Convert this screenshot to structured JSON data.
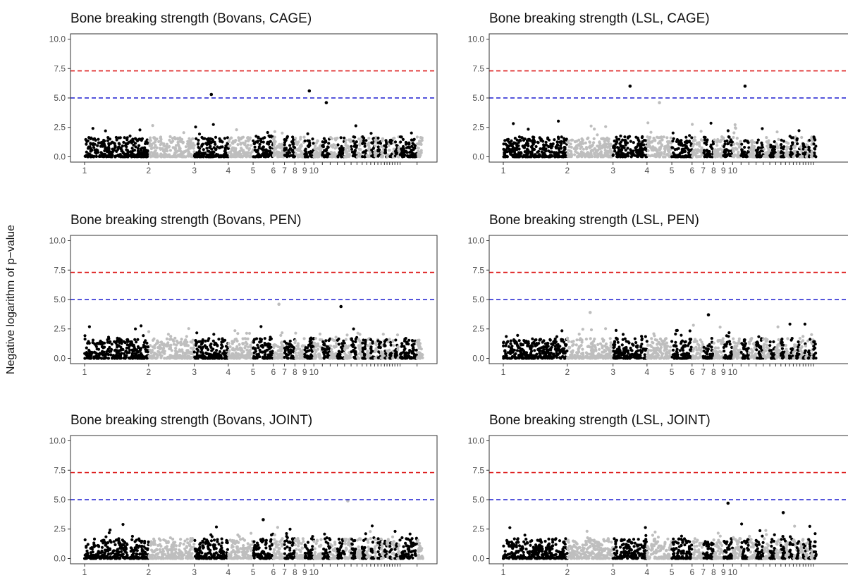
{
  "ylabel": "Negative logarithm of p−value",
  "colors": {
    "odd_chromosome": "#000000",
    "even_chromosome": "#bebebe",
    "genomewide_line": "#dd1c1c",
    "suggestive_line": "#1c1cd0"
  },
  "chart_data": [
    {
      "type": "scatter",
      "title": "Bone breaking strength (Bovans, CAGE)",
      "ylim": [
        0,
        10
      ],
      "yticks": [
        "0.0",
        "2.5",
        "5.0",
        "7.5",
        "10.0"
      ],
      "thresholds": {
        "genomewide": 7.3,
        "suggestive": 5.0
      },
      "chromosome_labels": [
        "1",
        "2",
        "3",
        "4",
        "5",
        "6",
        "7",
        "8",
        "9",
        "10"
      ],
      "notable_peaks": [
        {
          "chr": "3",
          "y": 5.3
        },
        {
          "chr": "9-10",
          "y": 5.6
        },
        {
          "chr": "11",
          "y": 4.6
        }
      ]
    },
    {
      "type": "scatter",
      "title": "Bone breaking strength (LSL, CAGE)",
      "ylim": [
        0,
        10
      ],
      "yticks": [
        "0.0",
        "2.5",
        "5.0",
        "7.5",
        "10.0"
      ],
      "thresholds": {
        "genomewide": 7.3,
        "suggestive": 5.0
      },
      "chromosome_labels": [
        "1",
        "2",
        "3",
        "4",
        "5",
        "6",
        "7",
        "8",
        "9",
        "10"
      ],
      "notable_peaks": [
        {
          "chr": "3",
          "y": 6.0
        },
        {
          "chr": "11",
          "y": 6.0
        },
        {
          "chr": "4",
          "y": 4.6
        }
      ]
    },
    {
      "type": "scatter",
      "title": "Bone breaking strength (Bovans, PEN)",
      "ylim": [
        0,
        10
      ],
      "yticks": [
        "0.0",
        "2.5",
        "5.0",
        "7.5",
        "10.0"
      ],
      "thresholds": {
        "genomewide": 7.3,
        "suggestive": 5.0
      },
      "chromosome_labels": [
        "1",
        "2",
        "3",
        "4",
        "5",
        "6",
        "7",
        "8",
        "9",
        "10"
      ],
      "notable_peaks": [
        {
          "chr": "6",
          "y": 4.6
        },
        {
          "chr": "13",
          "y": 4.4
        }
      ]
    },
    {
      "type": "scatter",
      "title": "Bone breaking strength (LSL, PEN)",
      "ylim": [
        0,
        10
      ],
      "yticks": [
        "0.0",
        "2.5",
        "5.0",
        "7.5",
        "10.0"
      ],
      "thresholds": {
        "genomewide": 7.3,
        "suggestive": 5.0
      },
      "chromosome_labels": [
        "1",
        "2",
        "3",
        "4",
        "5",
        "6",
        "7",
        "8",
        "9",
        "10"
      ],
      "notable_peaks": [
        {
          "chr": "2",
          "y": 3.9
        },
        {
          "chr": "7",
          "y": 3.7
        }
      ]
    },
    {
      "type": "scatter",
      "title": "Bone breaking strength (Bovans, JOINT)",
      "ylim": [
        0,
        10
      ],
      "yticks": [
        "0.0",
        "2.5",
        "5.0",
        "7.5",
        "10.0"
      ],
      "thresholds": {
        "genomewide": 7.3,
        "suggestive": 5.0
      },
      "chromosome_labels": [
        "1",
        "2",
        "3",
        "4",
        "5",
        "6",
        "7",
        "8",
        "9",
        "10"
      ],
      "notable_peaks": [
        {
          "chr": "14",
          "y": 4.9
        },
        {
          "chr": "5",
          "y": 3.3
        }
      ]
    },
    {
      "type": "scatter",
      "title": "Bone breaking strength (LSL, JOINT)",
      "ylim": [
        0,
        10
      ],
      "yticks": [
        "0.0",
        "2.5",
        "5.0",
        "7.5",
        "10.0"
      ],
      "thresholds": {
        "genomewide": 7.3,
        "suggestive": 5.0
      },
      "chromosome_labels": [
        "1",
        "2",
        "3",
        "4",
        "5",
        "6",
        "7",
        "8",
        "9",
        "10"
      ],
      "notable_peaks": [
        {
          "chr": "9",
          "y": 4.7
        },
        {
          "chr": "17",
          "y": 3.9
        }
      ]
    }
  ]
}
